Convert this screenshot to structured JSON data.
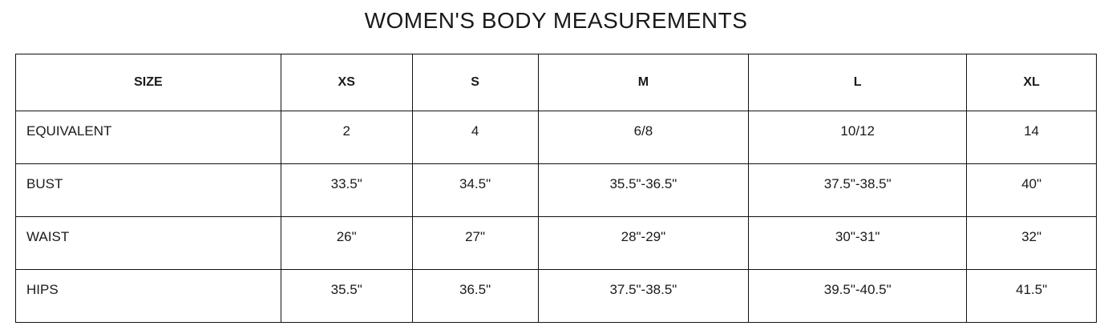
{
  "title": "WOMEN'S BODY MEASUREMENTS",
  "table": {
    "headers": [
      "SIZE",
      "XS",
      "S",
      "M",
      "L",
      "XL"
    ],
    "rows": [
      [
        "EQUIVALENT",
        "2",
        "4",
        "6/8",
        "10/12",
        "14"
      ],
      [
        "BUST",
        "33.5\"",
        "34.5\"",
        "35.5\"-36.5\"",
        "37.5\"-38.5\"",
        "40\""
      ],
      [
        "WAIST",
        "26\"",
        "27\"",
        "28\"-29\"",
        "30\"-31\"",
        "32\""
      ],
      [
        "HIPS",
        "35.5\"",
        "36.5\"",
        "37.5\"-38.5\"",
        "39.5\"-40.5\"",
        "41.5\""
      ]
    ]
  }
}
